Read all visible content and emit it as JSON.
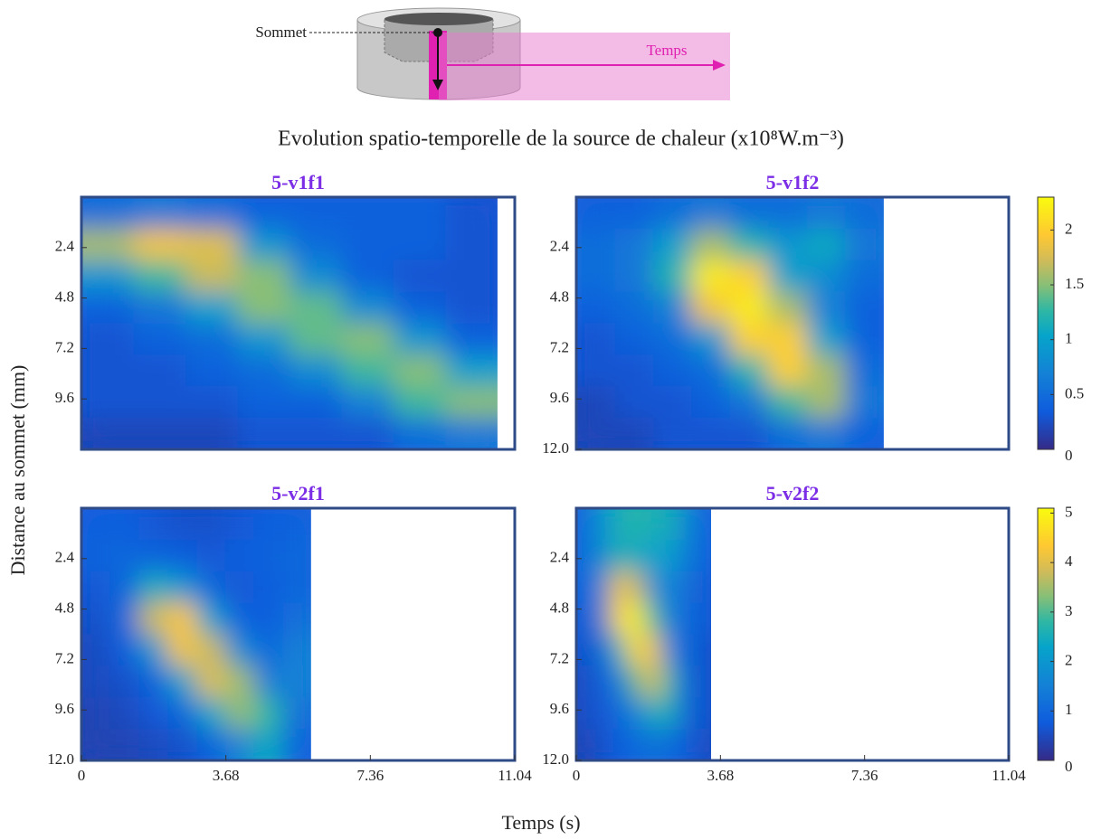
{
  "diagram": {
    "top_label": "Sommet",
    "time_label": "Temps"
  },
  "title": "Evolution spatio-temporelle de la source de chaleur (x10⁸W.m⁻³)",
  "xlabel": "Temps (s)",
  "ylabel": "Distance au sommet (mm)",
  "chart_data": [
    {
      "type": "heatmap",
      "title": "5-v1f1",
      "xlim": [
        0,
        11.04
      ],
      "ylim": [
        0,
        12
      ],
      "y_reversed": true,
      "yticks": [
        2.4,
        4.8,
        7.2,
        9.6
      ],
      "xbins": [
        0,
        1.325,
        2.65,
        3.975,
        5.3,
        6.625,
        7.95,
        9.275,
        10.6
      ],
      "ybins": [
        0,
        1.5,
        3,
        4.5,
        6,
        7.5,
        9,
        10.5,
        12
      ],
      "zlim": [
        0,
        2.3
      ],
      "z": [
        [
          0.5,
          0.6,
          0.5,
          0.4,
          0.4,
          0.4,
          0.4,
          0.3
        ],
        [
          1.6,
          1.9,
          1.8,
          0.9,
          0.5,
          0.4,
          0.4,
          0.3
        ],
        [
          0.9,
          1.3,
          1.7,
          1.5,
          0.8,
          0.4,
          0.3,
          0.3
        ],
        [
          0.4,
          0.6,
          1.0,
          1.5,
          1.4,
          0.8,
          0.4,
          0.3
        ],
        [
          0.3,
          0.4,
          0.5,
          0.9,
          1.4,
          1.5,
          0.9,
          0.4
        ],
        [
          0.3,
          0.3,
          0.4,
          0.5,
          0.8,
          1.3,
          1.5,
          1.0
        ],
        [
          0.3,
          0.3,
          0.3,
          0.4,
          0.4,
          0.7,
          1.3,
          1.5
        ],
        [
          0.2,
          0.2,
          0.2,
          0.3,
          0.3,
          0.3,
          0.5,
          0.6
        ]
      ]
    },
    {
      "type": "heatmap",
      "title": "5-v1f2",
      "xlim": [
        0,
        11.04
      ],
      "ylim": [
        0,
        12
      ],
      "y_reversed": true,
      "yticks": [
        2.4,
        4.8,
        7.2,
        9.6,
        {
          "value": 12,
          "label": "12.0"
        }
      ],
      "xbins": [
        0,
        0.98,
        1.96,
        2.94,
        3.92,
        4.9,
        5.88,
        6.86,
        7.85
      ],
      "ybins": [
        0,
        1.5,
        3,
        4.5,
        6,
        7.5,
        9,
        10.5,
        12
      ],
      "zlim": [
        0,
        2.3
      ],
      "zticks": [
        0,
        0.5,
        1,
        1.5,
        2
      ],
      "z": [
        [
          0.4,
          0.4,
          0.5,
          0.6,
          0.5,
          0.5,
          0.6,
          0.5
        ],
        [
          0.5,
          0.6,
          1.0,
          1.6,
          1.2,
          0.9,
          1.1,
          0.6
        ],
        [
          0.5,
          0.6,
          1.2,
          2.2,
          2.0,
          1.0,
          0.8,
          0.5
        ],
        [
          0.4,
          0.5,
          0.7,
          1.9,
          2.2,
          1.6,
          0.7,
          0.4
        ],
        [
          0.3,
          0.4,
          0.5,
          0.9,
          2.0,
          2.0,
          1.0,
          0.4
        ],
        [
          0.3,
          0.3,
          0.4,
          0.5,
          1.2,
          2.0,
          1.6,
          0.5
        ],
        [
          0.2,
          0.3,
          0.3,
          0.4,
          0.6,
          1.3,
          1.6,
          0.6
        ],
        [
          0.2,
          0.2,
          0.3,
          0.3,
          0.3,
          0.5,
          0.6,
          0.4
        ]
      ]
    },
    {
      "type": "heatmap",
      "title": "5-v2f1",
      "xlim": [
        0,
        11.04
      ],
      "ylim": [
        0,
        12
      ],
      "y_reversed": true,
      "yticks": [
        2.4,
        4.8,
        7.2,
        9.6,
        {
          "value": 12,
          "label": "12.0"
        }
      ],
      "xticks": [
        0,
        3.68,
        7.36,
        11.04
      ],
      "xbins": [
        0,
        0.73,
        1.46,
        2.19,
        2.93,
        3.66,
        4.39,
        5.12,
        5.85
      ],
      "ybins": [
        0,
        1.5,
        3,
        4.5,
        6,
        7.5,
        9,
        10.5,
        12
      ],
      "zlim": [
        0,
        5.1
      ],
      "z": [
        [
          0.8,
          0.8,
          0.7,
          0.6,
          0.6,
          0.7,
          0.8,
          0.9
        ],
        [
          0.9,
          1.0,
          0.9,
          0.8,
          0.7,
          0.8,
          0.9,
          1.0
        ],
        [
          0.7,
          1.0,
          2.5,
          2.0,
          1.0,
          0.7,
          0.8,
          1.0
        ],
        [
          0.6,
          1.0,
          3.8,
          4.3,
          2.2,
          0.9,
          0.8,
          1.2
        ],
        [
          0.5,
          0.8,
          2.0,
          4.2,
          3.8,
          1.8,
          1.0,
          1.5
        ],
        [
          0.5,
          0.6,
          0.9,
          2.2,
          4.0,
          3.5,
          1.5,
          1.5
        ],
        [
          0.4,
          0.5,
          0.7,
          1.0,
          2.3,
          3.4,
          2.8,
          1.2
        ],
        [
          0.4,
          0.4,
          0.5,
          0.6,
          0.9,
          1.6,
          2.4,
          0.9
        ]
      ]
    },
    {
      "type": "heatmap",
      "title": "5-v2f2",
      "xlim": [
        0,
        11.04
      ],
      "ylim": [
        0,
        12
      ],
      "y_reversed": true,
      "yticks": [
        2.4,
        4.8,
        7.2,
        9.6,
        {
          "value": 12,
          "label": "12.0"
        }
      ],
      "xticks": [
        0,
        3.68,
        7.36,
        11.04
      ],
      "xbins": [
        0,
        0.43,
        0.86,
        1.29,
        1.72,
        2.15,
        2.58,
        3.01,
        3.44
      ],
      "ybins": [
        0,
        1.5,
        3,
        4.5,
        6,
        7.5,
        9,
        10.5,
        12
      ],
      "zlim": [
        0,
        5.1
      ],
      "zticks": [
        0,
        1,
        2,
        3,
        4,
        5
      ],
      "z": [
        [
          0.8,
          2.0,
          2.5,
          2.8,
          2.5,
          2.6,
          1.8,
          0.8
        ],
        [
          0.9,
          1.8,
          2.6,
          2.4,
          2.2,
          2.2,
          1.5,
          0.8
        ],
        [
          0.8,
          1.5,
          4.2,
          3.8,
          1.8,
          1.6,
          1.2,
          0.7
        ],
        [
          0.7,
          1.3,
          4.5,
          5.0,
          3.0,
          1.5,
          1.1,
          0.7
        ],
        [
          0.6,
          1.0,
          2.5,
          4.6,
          4.2,
          1.6,
          1.0,
          0.6
        ],
        [
          0.5,
          0.8,
          1.4,
          3.0,
          4.0,
          2.8,
          1.0,
          0.6
        ],
        [
          0.5,
          0.7,
          1.0,
          1.6,
          2.4,
          2.6,
          1.0,
          0.6
        ],
        [
          0.4,
          0.6,
          0.8,
          1.0,
          1.2,
          1.1,
          0.8,
          0.5
        ]
      ]
    }
  ]
}
